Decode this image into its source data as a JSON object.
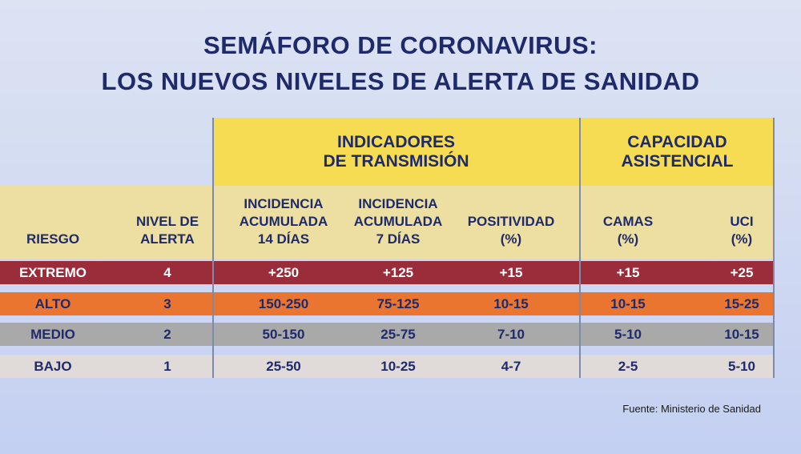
{
  "title": {
    "line1": "SEMÁFORO DE CORONAVIRUS:",
    "line2": "LOS NUEVOS NIVELES DE ALERTA DE SANIDAD"
  },
  "groups": {
    "transmision": "INDICADORES\nDE TRANSMISIÓN",
    "asistencial": "CAPACIDAD\nASISTENCIAL"
  },
  "columns": [
    {
      "key": "riesgo",
      "label": "RIESGO"
    },
    {
      "key": "nivel",
      "label": "NIVEL DE\nALERTA"
    },
    {
      "key": "ia14",
      "label": "INCIDENCIA\nACUMULADA\n14 DÍAS"
    },
    {
      "key": "ia7",
      "label": "INCIDENCIA\nACUMULADA\n7 DÍAS"
    },
    {
      "key": "positividad",
      "label": "POSITIVIDAD\n(%)"
    },
    {
      "key": "camas",
      "label": "CAMAS\n(%)"
    },
    {
      "key": "uci",
      "label": "UCI\n(%)"
    }
  ],
  "rows": [
    {
      "riesgo": "EXTREMO",
      "nivel": "4",
      "ia14": "+250",
      "ia7": "+125",
      "positividad": "+15",
      "camas": "+15",
      "uci": "+25",
      "bg": "#9b2d3b",
      "riesgo_color": "#ffffff",
      "text_color": "#ffffff"
    },
    {
      "riesgo": "ALTO",
      "nivel": "3",
      "ia14": "150-250",
      "ia7": "75-125",
      "positividad": "10-15",
      "camas": "10-15",
      "uci": "15-25",
      "bg": "#ea7530",
      "riesgo_color": "#1f2a6b",
      "text_color": "#1f2a6b"
    },
    {
      "riesgo": "MEDIO",
      "nivel": "2",
      "ia14": "50-150",
      "ia7": "25-75",
      "positividad": "7-10",
      "camas": "5-10",
      "uci": "10-15",
      "bg": "#a9a9a9",
      "riesgo_color": "#1f2a6b",
      "text_color": "#1f2a6b"
    },
    {
      "riesgo": "BAJO",
      "nivel": "1",
      "ia14": "25-50",
      "ia7": "10-25",
      "positividad": "4-7",
      "camas": "2-5",
      "uci": "5-10",
      "bg": "#e0dad9",
      "riesgo_color": "#1f2a6b",
      "text_color": "#1f2a6b"
    }
  ],
  "source": "Fuente: Ministerio de Sanidad",
  "colors": {
    "navy": "#1f2a6b",
    "yellow": "#f6dc53",
    "cream": "#ecdfa1"
  }
}
